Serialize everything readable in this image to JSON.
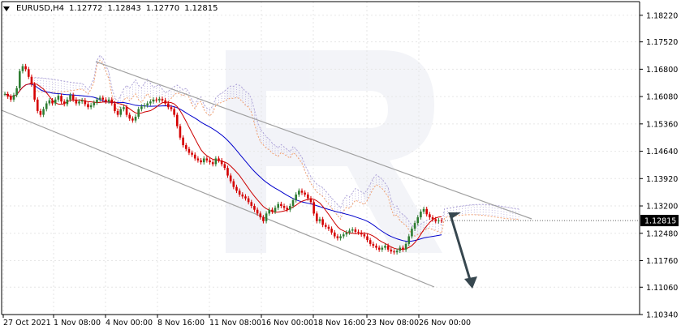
{
  "header": {
    "symbol": "EURUSD,H4",
    "open": "1.12772",
    "high": "1.12843",
    "low": "1.12770",
    "close": "1.12815"
  },
  "colors": {
    "bull_candle": "#2e7d32",
    "bear_candle": "#d50000",
    "tenkan": "#cc0000",
    "kijun": "#0000cc",
    "cloud_upper": "#b0a6d9",
    "cloud_lower": "#f0a070",
    "channel": "#a0a0a0",
    "arrow": "#37474f",
    "grid": "#e6e6e6",
    "price_tag_bg": "#000000",
    "price_tag_text": "#ffffff"
  },
  "chart_data": {
    "type": "candlestick",
    "ylim": [
      1.1034,
      1.1858
    ],
    "y_ticks": [
      "1.18220",
      "1.17520",
      "1.16800",
      "1.16080",
      "1.15360",
      "1.14640",
      "1.13920",
      "1.13200",
      "1.12480",
      "1.11760",
      "1.11060",
      "1.10340"
    ],
    "x_ticks": [
      "27 Oct 2021",
      "1 Nov 08:00",
      "4 Nov 00:00",
      "8 Nov 16:00",
      "11 Nov 08:00",
      "16 Nov 00:00",
      "18 Nov 16:00",
      "23 Nov 08:00",
      "26 Nov 00:00"
    ],
    "current_price": "1.12815",
    "candles_count": 148,
    "close": [
      1.1615,
      1.1608,
      1.16,
      1.1612,
      1.163,
      1.1675,
      1.1688,
      1.168,
      1.166,
      1.164,
      1.16,
      1.157,
      1.156,
      1.1575,
      1.159,
      1.1598,
      1.159,
      1.16,
      1.161,
      1.1595,
      1.1588,
      1.16,
      1.1612,
      1.16,
      1.159,
      1.1595,
      1.1598,
      1.1588,
      1.158,
      1.1585,
      1.1592,
      1.16,
      1.1605,
      1.16,
      1.1595,
      1.16,
      1.159,
      1.157,
      1.156,
      1.1575,
      1.158,
      1.156,
      1.155,
      1.1545,
      1.1555,
      1.1575,
      1.1582,
      1.1585,
      1.159,
      1.1595,
      1.16,
      1.1598,
      1.1602,
      1.1598,
      1.159,
      1.158,
      1.1575,
      1.156,
      1.153,
      1.15,
      1.148,
      1.147,
      1.146,
      1.1455,
      1.1445,
      1.144,
      1.1435,
      1.1445,
      1.144,
      1.1435,
      1.143,
      1.1445,
      1.144,
      1.143,
      1.142,
      1.14,
      1.1385,
      1.137,
      1.136,
      1.135,
      1.1345,
      1.134,
      1.133,
      1.132,
      1.131,
      1.13,
      1.129,
      1.128,
      1.13,
      1.131,
      1.1305,
      1.1315,
      1.1325,
      1.132,
      1.1315,
      1.131,
      1.132,
      1.1335,
      1.135,
      1.136,
      1.1355,
      1.135,
      1.134,
      1.133,
      1.13,
      1.128,
      1.1285,
      1.127,
      1.1265,
      1.126,
      1.125,
      1.124,
      1.1235,
      1.124,
      1.1245,
      1.125,
      1.1255,
      1.1258,
      1.1252,
      1.125,
      1.1245,
      1.124,
      1.123,
      1.122,
      1.1215,
      1.121,
      1.1205,
      1.121,
      1.1215,
      1.1205,
      1.12,
      1.1198,
      1.1202,
      1.121,
      1.1205,
      1.122,
      1.124,
      1.126,
      1.1275,
      1.129,
      1.1305,
      1.1312,
      1.1298,
      1.129,
      1.1285,
      1.128,
      1.1282,
      1.1281
    ]
  }
}
